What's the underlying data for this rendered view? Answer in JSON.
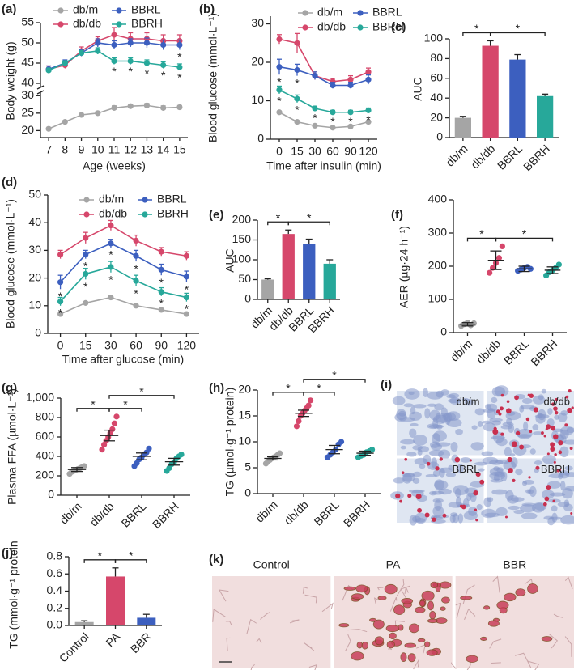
{
  "chart_data": [
    {
      "panel_label": "(a)",
      "type": "line",
      "ylabel": "Body weight (g)",
      "xlabel": "Age (weeks)",
      "x": [
        7,
        8,
        9,
        10,
        11,
        12,
        13,
        14,
        15
      ],
      "xlim": [
        6.5,
        15.5
      ],
      "xticks": [
        7,
        8,
        9,
        10,
        11,
        12,
        13,
        14,
        15
      ],
      "ylim": [
        18,
        55
      ],
      "y_break": [
        31,
        39
      ],
      "yticks": [
        20,
        25,
        30,
        40,
        45,
        50,
        55
      ],
      "series": [
        {
          "name": "db/m",
          "color": "#a5a5a5",
          "values": [
            20.5,
            22.5,
            24.5,
            25,
            26.5,
            27,
            27.2,
            26.5,
            26.7
          ],
          "errors": [
            0.3,
            0.4,
            0.4,
            0.5,
            0.6,
            0.6,
            0.6,
            0.6,
            0.5
          ]
        },
        {
          "name": "db/db",
          "color": "#d6476b",
          "values": [
            43.5,
            44.5,
            48,
            50.5,
            52,
            51,
            51,
            50.5,
            50.5
          ],
          "errors": [
            0.8,
            0.8,
            1,
            1,
            1.8,
            1.5,
            1.5,
            1.5,
            1.5
          ]
        },
        {
          "name": "BBRL",
          "color": "#3c5fbf",
          "values": [
            43.5,
            45,
            47.5,
            50,
            49.5,
            50,
            50,
            49.5,
            49.5
          ],
          "errors": [
            0.8,
            0.8,
            0.8,
            1,
            1,
            1,
            1.2,
            1.2,
            1.2
          ],
          "stars": [
            null,
            null,
            null,
            null,
            null,
            null,
            null,
            null,
            "*"
          ]
        },
        {
          "name": "BBRH",
          "color": "#27a89a",
          "values": [
            43.2,
            45,
            47.5,
            48,
            45.5,
            45.5,
            45,
            44.5,
            44
          ],
          "errors": [
            0.6,
            0.6,
            0.6,
            0.8,
            0.8,
            0.8,
            0.8,
            0.8,
            0.8
          ],
          "stars": [
            null,
            null,
            null,
            null,
            "*",
            "*",
            "*",
            "*",
            "*"
          ]
        }
      ]
    },
    {
      "panel_label": "(b)",
      "type": "line",
      "ylabel": "Blood glucose (mmol·L⁻¹)",
      "xlabel": "Time after insulin (min)",
      "categories": [
        "0",
        "15",
        "30",
        "60",
        "90",
        "120"
      ],
      "ylim": [
        0,
        32
      ],
      "yticks": [
        0,
        10,
        20,
        30
      ],
      "series": [
        {
          "name": "db/m",
          "color": "#a5a5a5",
          "values": [
            7,
            4.5,
            3.5,
            3,
            3.3,
            4.5
          ],
          "errors": [
            0.3,
            0.3,
            0.3,
            0.3,
            0.3,
            0.3
          ]
        },
        {
          "name": "db/db",
          "color": "#d6476b",
          "values": [
            26,
            25,
            16.5,
            15,
            15.5,
            17.5
          ],
          "errors": [
            1.2,
            2.5,
            1,
            0.8,
            1,
            1
          ]
        },
        {
          "name": "BBRL",
          "color": "#3c5fbf",
          "values": [
            18.8,
            18,
            16.5,
            14,
            14,
            15.5
          ],
          "errors": [
            2,
            1.5,
            1,
            0.8,
            0.8,
            1.2
          ],
          "stars": [
            "*",
            "*",
            null,
            null,
            null,
            null
          ]
        },
        {
          "name": "BBRH",
          "color": "#27a89a",
          "values": [
            12.8,
            10.5,
            8,
            7,
            7,
            7.5
          ],
          "errors": [
            1,
            1,
            0.6,
            0.5,
            0.5,
            0.6
          ],
          "stars": [
            "*",
            "*",
            "*",
            "*",
            "*",
            "*"
          ]
        }
      ]
    },
    {
      "panel_label": "(c)",
      "type": "bar",
      "ylabel": "AUC",
      "categories": [
        "db/m",
        "db/db",
        "BBRL",
        "BBRH"
      ],
      "values": [
        20,
        93,
        79,
        42
      ],
      "errors": [
        1.5,
        5,
        5,
        2
      ],
      "colors": [
        "#a5a5a5",
        "#d6476b",
        "#3c5fbf",
        "#27a89a"
      ],
      "ylim": [
        0,
        100
      ],
      "yticks": [
        0,
        20,
        40,
        60,
        80,
        100
      ],
      "brackets": [
        {
          "between": [
            "db/m",
            "db/db"
          ],
          "label": "*"
        },
        {
          "between": [
            "db/db",
            "BBRH"
          ],
          "label": "*"
        }
      ]
    },
    {
      "panel_label": "(d)",
      "type": "line",
      "ylabel": "Blood glucose (mmol·L⁻¹)",
      "xlabel": "Time after glucose (min)",
      "categories": [
        "0",
        "15",
        "30",
        "60",
        "90",
        "120"
      ],
      "ylim": [
        0,
        50
      ],
      "yticks": [
        0,
        10,
        20,
        30,
        40,
        50
      ],
      "series": [
        {
          "name": "db/m",
          "color": "#a5a5a5",
          "values": [
            7,
            11,
            13,
            10,
            8.5,
            7
          ],
          "errors": [
            0.5,
            0.5,
            0.8,
            0.5,
            0.5,
            0.5
          ]
        },
        {
          "name": "db/db",
          "color": "#d6476b",
          "values": [
            28.5,
            34.5,
            39,
            33.5,
            29.5,
            28
          ],
          "errors": [
            1.5,
            2,
            1.8,
            2,
            1.5,
            1.5
          ]
        },
        {
          "name": "BBRL",
          "color": "#3c5fbf",
          "values": [
            18.5,
            28.5,
            32.5,
            28,
            23,
            20.5
          ],
          "errors": [
            2.5,
            1.5,
            1.5,
            2,
            2,
            2
          ],
          "stars": [
            "*",
            "*",
            "*",
            "*",
            "*",
            "*"
          ]
        },
        {
          "name": "BBRH",
          "color": "#27a89a",
          "values": [
            11.5,
            21.5,
            24,
            19,
            15,
            13
          ],
          "errors": [
            1.5,
            2,
            2,
            2,
            1.5,
            1.5
          ],
          "stars": [
            "*",
            "*",
            "*",
            "*",
            "*",
            "*"
          ]
        }
      ]
    },
    {
      "panel_label": "(e)",
      "type": "bar",
      "ylabel": "AUC",
      "categories": [
        "db/m",
        "db/db",
        "BBRL",
        "BBRH"
      ],
      "values": [
        50,
        165,
        140,
        90
      ],
      "errors": [
        2,
        10,
        12,
        10
      ],
      "colors": [
        "#a5a5a5",
        "#d6476b",
        "#3c5fbf",
        "#27a89a"
      ],
      "ylim": [
        0,
        200
      ],
      "yticks": [
        0,
        50,
        100,
        150,
        200
      ],
      "brackets": [
        {
          "between": [
            "db/m",
            "db/db"
          ],
          "label": "*"
        },
        {
          "between": [
            "db/db",
            "BBRH"
          ],
          "label": "*"
        }
      ]
    },
    {
      "panel_label": "(f)",
      "type": "dot",
      "ylabel": "AER (µg·24 h⁻¹)",
      "categories": [
        "db/m",
        "db/db",
        "BBRL",
        "BBRH"
      ],
      "values": [
        25,
        218,
        192,
        188
      ],
      "errors": [
        5,
        28,
        8,
        10
      ],
      "points": [
        [
          20,
          25,
          30,
          22,
          28
        ],
        [
          180,
          195,
          210,
          225,
          260
        ],
        [
          186,
          190,
          195,
          198,
          192
        ],
        [
          172,
          182,
          188,
          195,
          205
        ]
      ],
      "colors": [
        "#a5a5a5",
        "#d6476b",
        "#3c5fbf",
        "#27a89a"
      ],
      "ylim": [
        0,
        400
      ],
      "yticks": [
        0,
        100,
        200,
        300,
        400
      ],
      "brackets": [
        {
          "between": [
            "db/m",
            "db/db"
          ],
          "label": "*"
        },
        {
          "between": [
            "db/db",
            "BBRH"
          ],
          "label": "*"
        }
      ]
    },
    {
      "panel_label": "(g)",
      "type": "dot",
      "ylabel": "Plasma FFA (µmol·L⁻¹)",
      "categories": [
        "db/m",
        "db/db",
        "BBRL",
        "BBRH"
      ],
      "values": [
        265,
        615,
        400,
        345
      ],
      "errors": [
        20,
        55,
        35,
        35
      ],
      "points": [
        [
          220,
          240,
          250,
          260,
          270,
          280,
          290,
          300
        ],
        [
          470,
          520,
          560,
          600,
          640,
          680,
          740,
          810
        ],
        [
          300,
          330,
          370,
          390,
          420,
          440,
          480
        ],
        [
          250,
          280,
          320,
          340,
          380,
          400,
          420
        ]
      ],
      "colors": [
        "#a5a5a5",
        "#d6476b",
        "#3c5fbf",
        "#27a89a"
      ],
      "ylim": [
        0,
        1000
      ],
      "yticks": [
        0,
        200,
        400,
        600,
        800,
        {
          "value": 1000,
          "label": "1,000"
        }
      ],
      "brackets": [
        {
          "between": [
            "db/m",
            "db/db"
          ],
          "label": "*"
        },
        {
          "between": [
            "db/db",
            "BBRL"
          ],
          "label": "*"
        },
        {
          "between": [
            "db/db",
            "BBRH"
          ],
          "label": "*"
        }
      ]
    },
    {
      "panel_label": "(h)",
      "type": "dot",
      "ylabel": "TG (µmol·g⁻¹ protein)",
      "categories": [
        "db/m",
        "db/db",
        "BBRL",
        "BBRH"
      ],
      "values": [
        6.8,
        15.5,
        8.5,
        7.8
      ],
      "errors": [
        0.3,
        0.6,
        0.8,
        0.4
      ],
      "points": [
        [
          5.8,
          6.2,
          6.5,
          6.8,
          7,
          7.2,
          7.5,
          7.8
        ],
        [
          13,
          14,
          15,
          15.5,
          16,
          16.5,
          17,
          18
        ],
        [
          7,
          7.5,
          8,
          8.5,
          9.5,
          10
        ],
        [
          7,
          7.3,
          7.5,
          8,
          8.2,
          8.5
        ]
      ],
      "colors": [
        "#a5a5a5",
        "#d6476b",
        "#3c5fbf",
        "#27a89a"
      ],
      "ylim": [
        0,
        20
      ],
      "yticks": [
        0,
        5,
        10,
        15,
        20
      ],
      "brackets": [
        {
          "between": [
            "db/m",
            "db/db"
          ],
          "label": "*"
        },
        {
          "between": [
            "db/db",
            "BBRL"
          ],
          "label": "*"
        },
        {
          "between": [
            "db/db",
            "BBRH"
          ],
          "label": "*"
        }
      ]
    },
    {
      "panel_label": "(i)",
      "type": "image",
      "labels": [
        "db/m",
        "db/db",
        "BBRL",
        "BBRH"
      ]
    },
    {
      "panel_label": "(j)",
      "type": "bar",
      "ylabel": "TG (mmol·g⁻¹ protein",
      "categories": [
        "Control",
        "PA",
        "BBR"
      ],
      "values": [
        0.04,
        0.57,
        0.09
      ],
      "errors": [
        0.015,
        0.1,
        0.04
      ],
      "colors": [
        "#a5a5a5",
        "#d6476b",
        "#3c5fbf"
      ],
      "ylim": [
        0,
        0.8
      ],
      "yticks": [
        {
          "value": 0,
          "label": "0.0"
        },
        0.2,
        0.4,
        0.6,
        0.8
      ],
      "brackets": [
        {
          "between": [
            "Control",
            "PA"
          ],
          "label": "*"
        },
        {
          "between": [
            "PA",
            "BBR"
          ],
          "label": "*"
        }
      ]
    },
    {
      "panel_label": "(k)",
      "type": "image",
      "labels": [
        "Control",
        "PA",
        "BBR"
      ]
    }
  ]
}
